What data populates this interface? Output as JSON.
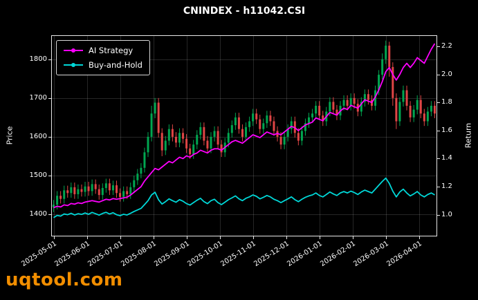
{
  "chart_data": {
    "type": "candlestick+line",
    "title": "CNINDEX - h11042.CSI",
    "watermark": "uqtool.com",
    "ylabel_left": "Price",
    "ylabel_right": "Return",
    "background": "#000000",
    "grid": true,
    "legend_position": "upper left",
    "price_lim": [
      1345,
      1860
    ],
    "return_lim": [
      0.85,
      2.275
    ],
    "yticks_left": [
      1400,
      1500,
      1600,
      1700,
      1800
    ],
    "yticks_right": [
      1.0,
      1.2,
      1.4,
      1.6,
      1.8,
      2.0,
      2.2
    ],
    "xtick_labels": [
      "2025-05-01",
      "2025-06-01",
      "2025-07-01",
      "2025-08-01",
      "2025-09-01",
      "2025-10-01",
      "2025-11-01",
      "2025-12-01",
      "2026-01-01",
      "2026-02-01",
      "2026-03-01",
      "2026-04-01"
    ],
    "xtick_positions": [
      0,
      9.5,
      19,
      28.5,
      38,
      47.5,
      57,
      66.5,
      76,
      85.5,
      95,
      104.5
    ],
    "n_bars": 110,
    "up_color": "#00a650",
    "down_color": "#e04545",
    "candles": [
      [
        1418,
        1437,
        1406,
        1425
      ],
      [
        1425,
        1460,
        1413,
        1448
      ],
      [
        1448,
        1460,
        1428,
        1440
      ],
      [
        1440,
        1474,
        1428,
        1462
      ],
      [
        1462,
        1474,
        1443,
        1455
      ],
      [
        1455,
        1482,
        1443,
        1470
      ],
      [
        1470,
        1482,
        1440,
        1452
      ],
      [
        1452,
        1477,
        1440,
        1465
      ],
      [
        1465,
        1477,
        1446,
        1458
      ],
      [
        1458,
        1484,
        1446,
        1472
      ],
      [
        1472,
        1484,
        1448,
        1460
      ],
      [
        1460,
        1490,
        1448,
        1478
      ],
      [
        1478,
        1490,
        1453,
        1465
      ],
      [
        1465,
        1477,
        1438,
        1450
      ],
      [
        1450,
        1480,
        1438,
        1468
      ],
      [
        1468,
        1492,
        1456,
        1480
      ],
      [
        1480,
        1492,
        1450,
        1462
      ],
      [
        1462,
        1487,
        1450,
        1475
      ],
      [
        1475,
        1487,
        1443,
        1455
      ],
      [
        1455,
        1467,
        1433,
        1445
      ],
      [
        1445,
        1472,
        1433,
        1460
      ],
      [
        1460,
        1472,
        1440,
        1452
      ],
      [
        1452,
        1482,
        1440,
        1470
      ],
      [
        1470,
        1500,
        1458,
        1488
      ],
      [
        1488,
        1517,
        1476,
        1505
      ],
      [
        1505,
        1532,
        1493,
        1520
      ],
      [
        1520,
        1572,
        1508,
        1560
      ],
      [
        1560,
        1612,
        1548,
        1600
      ],
      [
        1600,
        1680,
        1588,
        1660
      ],
      [
        1660,
        1700,
        1648,
        1688
      ],
      [
        1688,
        1700,
        1598,
        1610
      ],
      [
        1610,
        1622,
        1550,
        1565
      ],
      [
        1565,
        1602,
        1553,
        1590
      ],
      [
        1590,
        1632,
        1578,
        1620
      ],
      [
        1620,
        1632,
        1588,
        1600
      ],
      [
        1600,
        1612,
        1573,
        1585
      ],
      [
        1585,
        1622,
        1573,
        1610
      ],
      [
        1610,
        1622,
        1583,
        1595
      ],
      [
        1595,
        1607,
        1558,
        1570
      ],
      [
        1570,
        1582,
        1543,
        1555
      ],
      [
        1555,
        1592,
        1543,
        1580
      ],
      [
        1580,
        1617,
        1568,
        1605
      ],
      [
        1605,
        1637,
        1593,
        1625
      ],
      [
        1625,
        1637,
        1578,
        1590
      ],
      [
        1590,
        1602,
        1558,
        1570
      ],
      [
        1570,
        1612,
        1558,
        1600
      ],
      [
        1600,
        1627,
        1588,
        1615
      ],
      [
        1615,
        1627,
        1568,
        1580
      ],
      [
        1580,
        1592,
        1548,
        1560
      ],
      [
        1560,
        1597,
        1548,
        1585
      ],
      [
        1585,
        1622,
        1573,
        1610
      ],
      [
        1610,
        1642,
        1598,
        1630
      ],
      [
        1630,
        1662,
        1618,
        1650
      ],
      [
        1650,
        1662,
        1608,
        1620
      ],
      [
        1620,
        1632,
        1588,
        1600
      ],
      [
        1600,
        1637,
        1588,
        1625
      ],
      [
        1625,
        1652,
        1613,
        1640
      ],
      [
        1640,
        1672,
        1628,
        1660
      ],
      [
        1660,
        1672,
        1633,
        1645
      ],
      [
        1645,
        1657,
        1608,
        1620
      ],
      [
        1620,
        1647,
        1608,
        1635
      ],
      [
        1635,
        1667,
        1623,
        1655
      ],
      [
        1655,
        1667,
        1628,
        1640
      ],
      [
        1640,
        1652,
        1603,
        1615
      ],
      [
        1615,
        1627,
        1588,
        1600
      ],
      [
        1600,
        1612,
        1568,
        1580
      ],
      [
        1580,
        1612,
        1568,
        1600
      ],
      [
        1600,
        1632,
        1588,
        1620
      ],
      [
        1620,
        1652,
        1608,
        1640
      ],
      [
        1640,
        1652,
        1598,
        1610
      ],
      [
        1610,
        1622,
        1578,
        1590
      ],
      [
        1590,
        1627,
        1578,
        1615
      ],
      [
        1615,
        1647,
        1603,
        1635
      ],
      [
        1635,
        1662,
        1623,
        1650
      ],
      [
        1650,
        1672,
        1638,
        1660
      ],
      [
        1660,
        1692,
        1648,
        1680
      ],
      [
        1680,
        1692,
        1643,
        1655
      ],
      [
        1655,
        1667,
        1628,
        1640
      ],
      [
        1640,
        1677,
        1628,
        1665
      ],
      [
        1665,
        1702,
        1653,
        1690
      ],
      [
        1690,
        1702,
        1658,
        1670
      ],
      [
        1670,
        1682,
        1643,
        1655
      ],
      [
        1655,
        1692,
        1643,
        1680
      ],
      [
        1680,
        1707,
        1668,
        1695
      ],
      [
        1695,
        1707,
        1668,
        1680
      ],
      [
        1680,
        1712,
        1668,
        1700
      ],
      [
        1700,
        1712,
        1673,
        1685
      ],
      [
        1685,
        1697,
        1653,
        1665
      ],
      [
        1665,
        1702,
        1653,
        1690
      ],
      [
        1690,
        1722,
        1678,
        1710
      ],
      [
        1710,
        1722,
        1683,
        1695
      ],
      [
        1695,
        1707,
        1668,
        1680
      ],
      [
        1680,
        1732,
        1668,
        1720
      ],
      [
        1720,
        1772,
        1708,
        1760
      ],
      [
        1760,
        1815,
        1748,
        1800
      ],
      [
        1800,
        1848,
        1788,
        1835
      ],
      [
        1835,
        1845,
        1755,
        1780
      ],
      [
        1780,
        1792,
        1680,
        1700
      ],
      [
        1700,
        1712,
        1620,
        1640
      ],
      [
        1640,
        1702,
        1628,
        1690
      ],
      [
        1690,
        1732,
        1678,
        1720
      ],
      [
        1720,
        1732,
        1668,
        1680
      ],
      [
        1680,
        1692,
        1638,
        1650
      ],
      [
        1650,
        1682,
        1638,
        1670
      ],
      [
        1670,
        1707,
        1658,
        1695
      ],
      [
        1695,
        1707,
        1648,
        1660
      ],
      [
        1660,
        1672,
        1628,
        1640
      ],
      [
        1640,
        1677,
        1628,
        1665
      ],
      [
        1665,
        1692,
        1653,
        1680
      ],
      [
        1680,
        1692,
        1648,
        1660
      ]
    ],
    "series": [
      {
        "name": "AI Strategy",
        "color": "#ff00ff",
        "axis": "return",
        "values": [
          1.05,
          1.06,
          1.055,
          1.07,
          1.065,
          1.08,
          1.075,
          1.085,
          1.08,
          1.09,
          1.095,
          1.1,
          1.095,
          1.09,
          1.1,
          1.11,
          1.105,
          1.115,
          1.11,
          1.115,
          1.12,
          1.125,
          1.14,
          1.16,
          1.18,
          1.2,
          1.24,
          1.27,
          1.3,
          1.33,
          1.32,
          1.34,
          1.36,
          1.38,
          1.37,
          1.39,
          1.41,
          1.4,
          1.42,
          1.41,
          1.43,
          1.44,
          1.46,
          1.45,
          1.44,
          1.46,
          1.47,
          1.47,
          1.46,
          1.48,
          1.5,
          1.52,
          1.53,
          1.52,
          1.51,
          1.53,
          1.55,
          1.57,
          1.56,
          1.55,
          1.57,
          1.59,
          1.58,
          1.57,
          1.58,
          1.57,
          1.59,
          1.61,
          1.63,
          1.62,
          1.6,
          1.62,
          1.64,
          1.65,
          1.66,
          1.69,
          1.68,
          1.67,
          1.7,
          1.73,
          1.72,
          1.71,
          1.74,
          1.76,
          1.75,
          1.78,
          1.77,
          1.76,
          1.79,
          1.82,
          1.81,
          1.8,
          1.84,
          1.89,
          1.95,
          2.02,
          2.05,
          2.0,
          1.96,
          2.0,
          2.05,
          2.08,
          2.05,
          2.08,
          2.12,
          2.1,
          2.08,
          2.13,
          2.18,
          2.22
        ]
      },
      {
        "name": "Buy-and-Hold",
        "color": "#00d8d8",
        "axis": "return",
        "values": [
          0.979,
          0.995,
          0.99,
          1.005,
          1.0,
          1.01,
          0.998,
          1.007,
          1.002,
          1.012,
          1.003,
          1.016,
          1.007,
          0.997,
          1.009,
          1.017,
          1.005,
          1.014,
          1.0,
          0.993,
          1.003,
          0.998,
          1.01,
          1.023,
          1.034,
          1.045,
          1.072,
          1.1,
          1.141,
          1.16,
          1.107,
          1.076,
          1.093,
          1.113,
          1.1,
          1.089,
          1.107,
          1.096,
          1.079,
          1.069,
          1.086,
          1.103,
          1.117,
          1.093,
          1.079,
          1.1,
          1.11,
          1.086,
          1.072,
          1.089,
          1.107,
          1.12,
          1.134,
          1.113,
          1.1,
          1.117,
          1.127,
          1.141,
          1.131,
          1.113,
          1.124,
          1.137,
          1.127,
          1.11,
          1.1,
          1.086,
          1.1,
          1.113,
          1.127,
          1.107,
          1.093,
          1.11,
          1.124,
          1.134,
          1.141,
          1.155,
          1.137,
          1.127,
          1.144,
          1.162,
          1.148,
          1.137,
          1.155,
          1.165,
          1.155,
          1.168,
          1.158,
          1.144,
          1.162,
          1.175,
          1.165,
          1.155,
          1.182,
          1.21,
          1.237,
          1.261,
          1.223,
          1.168,
          1.127,
          1.162,
          1.182,
          1.155,
          1.134,
          1.148,
          1.165,
          1.141,
          1.127,
          1.144,
          1.155,
          1.141
        ]
      }
    ]
  }
}
